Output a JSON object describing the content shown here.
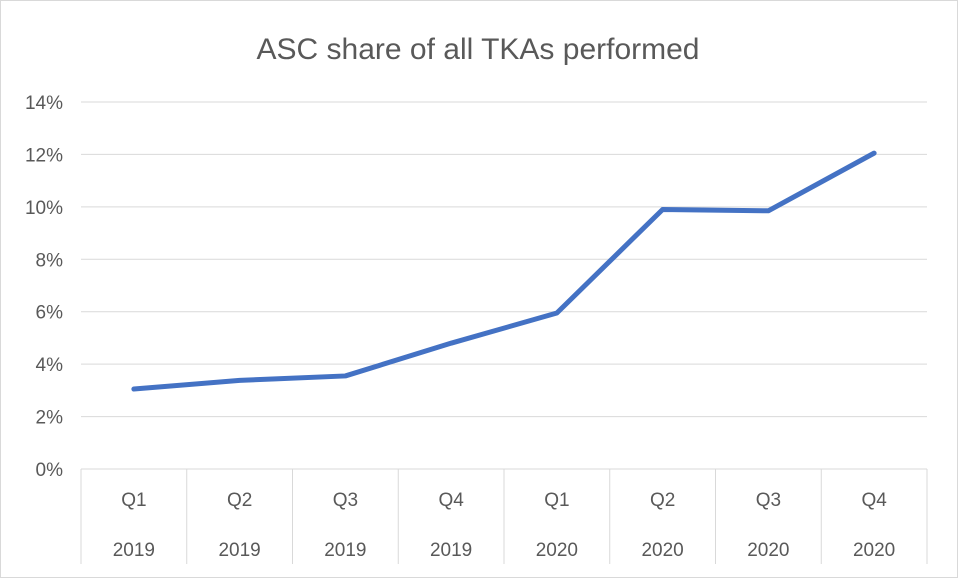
{
  "chart_data": {
    "type": "line",
    "title": "ASC share of all TKAs performed",
    "categories": [
      {
        "quarter": "Q1",
        "year": "2019"
      },
      {
        "quarter": "Q2",
        "year": "2019"
      },
      {
        "quarter": "Q3",
        "year": "2019"
      },
      {
        "quarter": "Q4",
        "year": "2019"
      },
      {
        "quarter": "Q1",
        "year": "2020"
      },
      {
        "quarter": "Q2",
        "year": "2020"
      },
      {
        "quarter": "Q3",
        "year": "2020"
      },
      {
        "quarter": "Q4",
        "year": "2020"
      }
    ],
    "series": [
      {
        "values": [
          3.05,
          3.38,
          3.55,
          4.8,
          5.95,
          9.9,
          9.85,
          12.05
        ],
        "color": "#4472c4"
      }
    ],
    "ylim": [
      0,
      14
    ],
    "yticks": [
      "0%",
      "2%",
      "4%",
      "6%",
      "8%",
      "10%",
      "12%",
      "14%"
    ],
    "grid": true,
    "legend": "none",
    "colors": {
      "gridline": "#d9d9d9",
      "text": "#595959",
      "line": "#4472c4"
    }
  }
}
